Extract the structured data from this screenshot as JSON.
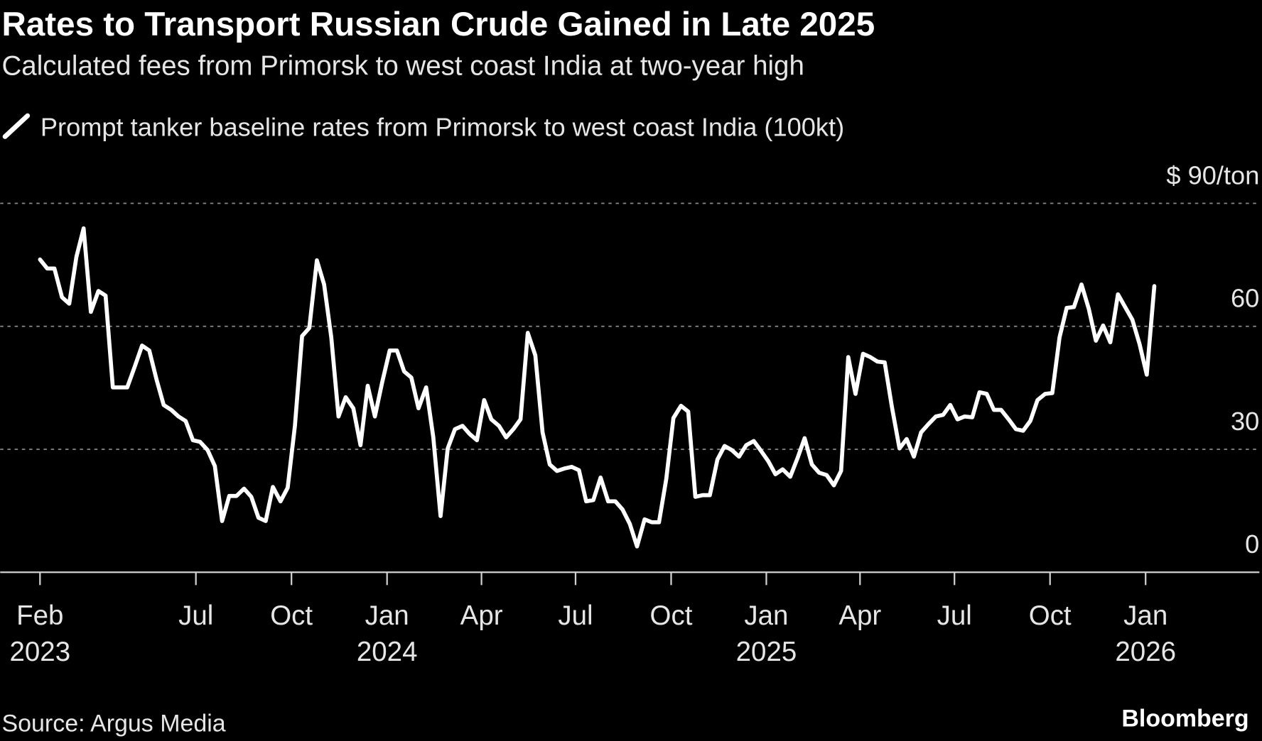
{
  "chart_data": {
    "type": "line",
    "title": "Rates to Transport Russian Crude Gained in Late 2025",
    "subtitle": "Calculated fees from Primorsk to west coast India at two-year high",
    "source": "Source: Argus Media",
    "brand": "Bloomberg",
    "xlim": [
      2022.98,
      2026.3
    ],
    "xticks": [
      {
        "value": 2023.085,
        "label": "Feb",
        "sublabel": "2023"
      },
      {
        "value": 2023.496,
        "label": "Jul"
      },
      {
        "value": 2023.748,
        "label": "Oct"
      },
      {
        "value": 2024.0,
        "label": "Jan",
        "sublabel": "2024"
      },
      {
        "value": 2024.249,
        "label": "Apr"
      },
      {
        "value": 2024.497,
        "label": "Jul"
      },
      {
        "value": 2024.749,
        "label": "Oct"
      },
      {
        "value": 2025.0,
        "label": "Jan",
        "sublabel": "2025"
      },
      {
        "value": 2025.247,
        "label": "Apr"
      },
      {
        "value": 2025.496,
        "label": "Jul"
      },
      {
        "value": 2025.748,
        "label": "Oct"
      },
      {
        "value": 2026.0,
        "label": "Jan",
        "sublabel": "2026"
      }
    ],
    "ylim": [
      0,
      90
    ],
    "yticks": [
      0,
      30,
      60,
      {
        "value": 90,
        "label": "$ 90/ton"
      }
    ],
    "grid": true,
    "x": [
      2023.085,
      2023.104,
      2023.123,
      2023.143,
      2023.162,
      2023.181,
      2023.2,
      2023.219,
      2023.239,
      2023.258,
      2023.277,
      2023.296,
      2023.315,
      2023.335,
      2023.354,
      2023.373,
      2023.392,
      2023.411,
      2023.431,
      2023.45,
      2023.469,
      2023.488,
      2023.507,
      2023.527,
      2023.546,
      2023.565,
      2023.584,
      2023.603,
      2023.623,
      2023.642,
      2023.661,
      2023.68,
      2023.699,
      2023.719,
      2023.738,
      2023.757,
      2023.776,
      2023.795,
      2023.815,
      2023.834,
      2023.853,
      2023.872,
      2023.891,
      2023.911,
      2023.93,
      2023.949,
      2023.968,
      2023.987,
      2024.007,
      2024.026,
      2024.045,
      2024.064,
      2024.083,
      2024.103,
      2024.122,
      2024.141,
      2024.16,
      2024.179,
      2024.199,
      2024.218,
      2024.237,
      2024.256,
      2024.275,
      2024.295,
      2024.314,
      2024.333,
      2024.352,
      2024.371,
      2024.391,
      2024.41,
      2024.429,
      2024.448,
      2024.467,
      2024.487,
      2024.506,
      2024.525,
      2024.544,
      2024.563,
      2024.583,
      2024.602,
      2024.621,
      2024.64,
      2024.659,
      2024.679,
      2024.698,
      2024.717,
      2024.736,
      2024.755,
      2024.775,
      2024.794,
      2024.813,
      2024.832,
      2024.851,
      2024.871,
      2024.89,
      2024.909,
      2024.928,
      2024.947,
      2024.967,
      2024.986,
      2025.005,
      2025.024,
      2025.043,
      2025.063,
      2025.082,
      2025.101,
      2025.12,
      2025.139,
      2025.159,
      2025.178,
      2025.197,
      2025.216,
      2025.235,
      2025.255,
      2025.274,
      2025.293,
      2025.312,
      2025.331,
      2025.351,
      2025.37,
      2025.389,
      2025.408,
      2025.427,
      2025.447,
      2025.466,
      2025.485,
      2025.504,
      2025.523,
      2025.543,
      2025.562,
      2025.581,
      2025.6,
      2025.619,
      2025.639,
      2025.658,
      2025.677,
      2025.696,
      2025.715,
      2025.735,
      2025.754,
      2025.773,
      2025.792,
      2025.811,
      2025.831,
      2025.85,
      2025.869,
      2025.888,
      2025.907,
      2025.927,
      2025.946,
      2025.965,
      2025.984,
      2026.003,
      2026.023
    ],
    "series": [
      {
        "name": "Prompt tanker baseline rates from Primorsk to west coast India (100kt)",
        "color": "#ffffff",
        "values": [
          76.3,
          74.1,
          74.1,
          67.1,
          65.5,
          76.9,
          83.9,
          63.5,
          68.6,
          67.5,
          45.1,
          45.1,
          45.1,
          50.2,
          55.3,
          54.1,
          47.1,
          40.8,
          39.6,
          38.0,
          36.9,
          32.2,
          31.8,
          29.8,
          25.9,
          12.5,
          18.6,
          18.6,
          20.4,
          18.4,
          13.3,
          12.5,
          20.8,
          17.3,
          20.6,
          35.7,
          57.6,
          59.6,
          76.1,
          70.2,
          57.3,
          38.0,
          42.7,
          40.0,
          31.0,
          45.5,
          38.0,
          46.3,
          54.1,
          54.1,
          49.0,
          47.5,
          40.0,
          45.1,
          32.9,
          13.7,
          30.2,
          34.9,
          35.7,
          33.7,
          32.2,
          42.0,
          37.3,
          35.7,
          32.9,
          34.9,
          37.3,
          58.4,
          52.9,
          34.1,
          26.3,
          24.7,
          25.3,
          25.7,
          24.9,
          17.3,
          17.6,
          23.1,
          17.3,
          17.3,
          15.3,
          11.8,
          6.3,
          12.9,
          12.2,
          12.2,
          22.7,
          37.6,
          40.6,
          39.2,
          18.4,
          18.8,
          18.8,
          27.5,
          30.8,
          29.8,
          28.2,
          31.0,
          32.0,
          29.6,
          27.1,
          23.9,
          25.1,
          23.3,
          27.8,
          32.7,
          26.3,
          24.3,
          23.7,
          21.2,
          24.7,
          52.5,
          43.5,
          53.3,
          52.5,
          51.4,
          51.2,
          40.4,
          30.2,
          32.5,
          28.2,
          34.1,
          36.1,
          38.0,
          38.4,
          40.8,
          37.3,
          38.0,
          37.8,
          43.9,
          43.5,
          39.6,
          39.6,
          37.3,
          34.9,
          34.5,
          36.9,
          42.0,
          43.5,
          43.7,
          57.3,
          64.5,
          64.7,
          70.2,
          64.3,
          56.5,
          60.2,
          56.1,
          67.8,
          64.7,
          61.6,
          55.7,
          48.2,
          69.8
        ]
      }
    ]
  }
}
